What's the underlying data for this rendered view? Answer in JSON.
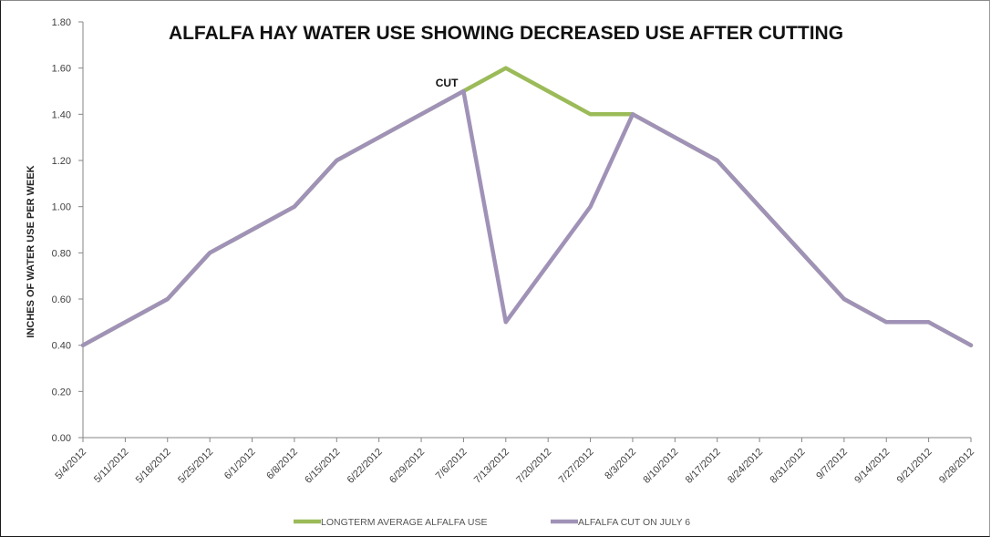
{
  "chart_data": {
    "type": "line",
    "title": "ALFALFA HAY WATER USE SHOWING DECREASED USE AFTER CUTTING",
    "xlabel": "",
    "ylabel": "INCHES OF WATER USE PER WEEK",
    "ylim": [
      0,
      1.8
    ],
    "y_ticks": [
      "0.00",
      "0.20",
      "0.40",
      "0.60",
      "0.80",
      "1.00",
      "1.20",
      "1.40",
      "1.60",
      "1.80"
    ],
    "grid": false,
    "legend_position": "bottom",
    "categories": [
      "5/4/2012",
      "5/11/2012",
      "5/18/2012",
      "5/25/2012",
      "6/1/2012",
      "6/8/2012",
      "6/15/2012",
      "6/22/2012",
      "6/29/2012",
      "7/6/2012",
      "7/13/2012",
      "7/20/2012",
      "7/27/2012",
      "8/3/2012",
      "8/10/2012",
      "8/17/2012",
      "8/24/2012",
      "8/31/2012",
      "9/7/2012",
      "9/14/2012",
      "9/21/2012",
      "9/28/2012"
    ],
    "series": [
      {
        "name": "LONGTERM AVERAGE ALFALFA  USE",
        "color": "#9bbb59",
        "values": [
          0.4,
          0.5,
          0.6,
          0.8,
          0.9,
          1.0,
          1.2,
          1.3,
          1.4,
          1.5,
          1.6,
          1.5,
          1.4,
          1.4,
          1.3,
          1.2,
          1.0,
          0.8,
          0.6,
          0.5,
          0.5,
          0.4
        ]
      },
      {
        "name": "ALFALFA  CUT ON JULY 6",
        "color": "#a092b7",
        "values": [
          0.4,
          0.5,
          0.6,
          0.8,
          0.9,
          1.0,
          1.2,
          1.3,
          1.4,
          1.5,
          0.5,
          0.75,
          1.0,
          1.4,
          1.3,
          1.2,
          1.0,
          0.8,
          0.6,
          0.5,
          0.5,
          0.4
        ]
      }
    ],
    "annotations": [
      {
        "text": "CUT",
        "category": "7/6/2012",
        "value": 1.5
      }
    ]
  }
}
